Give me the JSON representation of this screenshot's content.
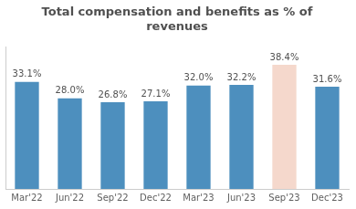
{
  "chart_data": {
    "type": "bar",
    "title": "Total compensation and benefits as % of\nrevenues",
    "categories": [
      "Mar'22",
      "Jun'22",
      "Sep'22",
      "Dec'22",
      "Mar'23",
      "Jun'23",
      "Sep'23",
      "Dec'23"
    ],
    "values": [
      33.1,
      28.0,
      26.8,
      27.1,
      32.0,
      32.2,
      38.4,
      31.6
    ],
    "value_labels": [
      "33.1%",
      "28.0%",
      "26.8%",
      "27.1%",
      "32.0%",
      "32.2%",
      "38.4%",
      "31.6%"
    ],
    "colors": [
      "#4d8fbe",
      "#4d8fbe",
      "#4d8fbe",
      "#4d8fbe",
      "#4d8fbe",
      "#4d8fbe",
      "#f5d8cc",
      "#4d8fbe"
    ],
    "ylim": [
      0,
      44
    ],
    "grid": false,
    "data_labels": true,
    "tick_labels": "x"
  }
}
